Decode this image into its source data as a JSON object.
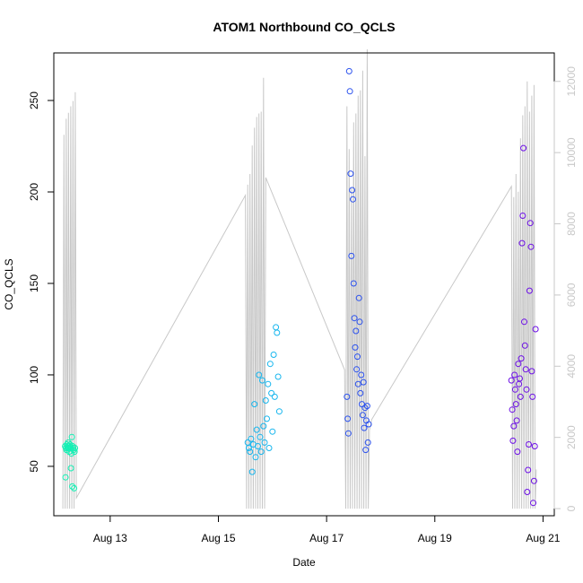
{
  "chart_data": {
    "type": "scatter",
    "title": "ATOM1 Northbound CO_QCLS",
    "xlabel": "Date",
    "ylabel": "CO_QCLS",
    "ylabel_right": "",
    "x_ticks": [
      {
        "label": "Aug 13",
        "value": "2018-08-13"
      },
      {
        "label": "Aug 15",
        "value": "2018-08-15"
      },
      {
        "label": "Aug 17",
        "value": "2018-08-17"
      },
      {
        "label": "Aug 19",
        "value": "2018-08-19"
      },
      {
        "label": "Aug 21",
        "value": "2018-08-21"
      }
    ],
    "y_ticks": [
      50,
      100,
      150,
      200,
      250
    ],
    "y_right_ticks": [
      0,
      2000,
      4000,
      6000,
      8000,
      10000,
      12000
    ],
    "xlim": [
      "2018-08-11T23:00",
      "2018-08-21T05:00"
    ],
    "ylim": [
      23,
      276
    ],
    "y_right_lim": [
      -200,
      12800
    ],
    "grid": false,
    "legend": "none",
    "point_style": "open-circle",
    "color_scale": [
      "#00f5b4",
      "#0aa8ee",
      "#1f2ff0",
      "#6a12e6"
    ],
    "series": [
      {
        "color": "#13f0b4",
        "points": [
          [
            "2018-08-12T04:00",
            61
          ],
          [
            "2018-08-12T04:12",
            44
          ],
          [
            "2018-08-12T04:24",
            60
          ],
          [
            "2018-08-12T04:36",
            59
          ],
          [
            "2018-08-12T04:48",
            62
          ],
          [
            "2018-08-12T05:00",
            61
          ],
          [
            "2018-08-12T05:12",
            60
          ],
          [
            "2018-08-12T05:24",
            63
          ],
          [
            "2018-08-12T05:36",
            60
          ],
          [
            "2018-08-12T05:48",
            58
          ],
          [
            "2018-08-12T06:00",
            61
          ],
          [
            "2018-08-12T06:12",
            62
          ],
          [
            "2018-08-12T06:24",
            60
          ],
          [
            "2018-08-12T06:36",
            49
          ],
          [
            "2018-08-12T06:48",
            57
          ],
          [
            "2018-08-12T07:00",
            66
          ],
          [
            "2018-08-12T07:12",
            39
          ],
          [
            "2018-08-12T07:24",
            61
          ],
          [
            "2018-08-12T07:36",
            60
          ],
          [
            "2018-08-12T07:48",
            59
          ],
          [
            "2018-08-12T08:00",
            38
          ],
          [
            "2018-08-12T08:12",
            58
          ],
          [
            "2018-08-12T08:24",
            60
          ]
        ]
      },
      {
        "color": "#17b6ee",
        "points": [
          [
            "2018-08-15T13:00",
            63
          ],
          [
            "2018-08-15T13:30",
            60
          ],
          [
            "2018-08-15T14:00",
            58
          ],
          [
            "2018-08-15T14:30",
            65
          ],
          [
            "2018-08-15T15:00",
            47
          ],
          [
            "2018-08-15T15:30",
            62
          ],
          [
            "2018-08-15T16:00",
            84
          ],
          [
            "2018-08-15T16:30",
            55
          ],
          [
            "2018-08-15T17:00",
            70
          ],
          [
            "2018-08-15T17:30",
            61
          ],
          [
            "2018-08-15T18:00",
            100
          ],
          [
            "2018-08-15T18:30",
            66
          ],
          [
            "2018-08-15T19:00",
            58
          ],
          [
            "2018-08-15T19:30",
            97
          ],
          [
            "2018-08-15T20:00",
            72
          ],
          [
            "2018-08-15T20:30",
            63
          ],
          [
            "2018-08-15T21:00",
            86
          ],
          [
            "2018-08-15T21:30",
            76
          ],
          [
            "2018-08-15T22:00",
            95
          ],
          [
            "2018-08-15T22:30",
            60
          ],
          [
            "2018-08-15T23:00",
            106
          ],
          [
            "2018-08-15T23:30",
            90
          ],
          [
            "2018-08-16T00:00",
            69
          ],
          [
            "2018-08-16T00:30",
            111
          ],
          [
            "2018-08-16T01:00",
            88
          ],
          [
            "2018-08-16T01:30",
            126
          ],
          [
            "2018-08-16T02:00",
            123
          ],
          [
            "2018-08-16T02:30",
            99
          ],
          [
            "2018-08-16T03:00",
            80
          ]
        ]
      },
      {
        "color": "#2c52ee",
        "points": [
          [
            "2018-08-17T09:00",
            88
          ],
          [
            "2018-08-17T09:20",
            76
          ],
          [
            "2018-08-17T09:40",
            68
          ],
          [
            "2018-08-17T10:00",
            266
          ],
          [
            "2018-08-17T10:20",
            255
          ],
          [
            "2018-08-17T10:40",
            210
          ],
          [
            "2018-08-17T11:00",
            165
          ],
          [
            "2018-08-17T11:20",
            201
          ],
          [
            "2018-08-17T11:40",
            196
          ],
          [
            "2018-08-17T12:00",
            150
          ],
          [
            "2018-08-17T12:20",
            131
          ],
          [
            "2018-08-17T12:40",
            115
          ],
          [
            "2018-08-17T13:00",
            124
          ],
          [
            "2018-08-17T13:20",
            103
          ],
          [
            "2018-08-17T13:40",
            110
          ],
          [
            "2018-08-17T14:00",
            95
          ],
          [
            "2018-08-17T14:20",
            142
          ],
          [
            "2018-08-17T14:40",
            129
          ],
          [
            "2018-08-17T15:00",
            90
          ],
          [
            "2018-08-17T15:20",
            100
          ],
          [
            "2018-08-17T15:40",
            84
          ],
          [
            "2018-08-17T16:00",
            78
          ],
          [
            "2018-08-17T16:20",
            96
          ],
          [
            "2018-08-17T16:40",
            71
          ],
          [
            "2018-08-17T17:00",
            82
          ],
          [
            "2018-08-17T17:20",
            59
          ],
          [
            "2018-08-17T17:40",
            75
          ],
          [
            "2018-08-17T18:00",
            83
          ],
          [
            "2018-08-17T18:20",
            63
          ],
          [
            "2018-08-17T18:40",
            73
          ]
        ]
      },
      {
        "color": "#6d10e6",
        "points": [
          [
            "2018-08-20T10:00",
            97
          ],
          [
            "2018-08-20T10:20",
            81
          ],
          [
            "2018-08-20T10:40",
            64
          ],
          [
            "2018-08-20T11:00",
            72
          ],
          [
            "2018-08-20T11:20",
            100
          ],
          [
            "2018-08-20T11:40",
            92
          ],
          [
            "2018-08-20T12:00",
            84
          ],
          [
            "2018-08-20T12:20",
            75
          ],
          [
            "2018-08-20T12:40",
            58
          ],
          [
            "2018-08-20T13:00",
            106
          ],
          [
            "2018-08-20T13:20",
            95
          ],
          [
            "2018-08-20T13:40",
            98
          ],
          [
            "2018-08-20T14:00",
            88
          ],
          [
            "2018-08-20T14:20",
            109
          ],
          [
            "2018-08-20T14:40",
            172
          ],
          [
            "2018-08-20T15:00",
            187
          ],
          [
            "2018-08-20T15:20",
            224
          ],
          [
            "2018-08-20T15:40",
            129
          ],
          [
            "2018-08-20T16:00",
            116
          ],
          [
            "2018-08-20T16:20",
            103
          ],
          [
            "2018-08-20T16:40",
            92
          ],
          [
            "2018-08-20T17:00",
            36
          ],
          [
            "2018-08-20T17:20",
            48
          ],
          [
            "2018-08-20T17:40",
            62
          ],
          [
            "2018-08-20T18:00",
            146
          ],
          [
            "2018-08-20T18:20",
            183
          ],
          [
            "2018-08-20T18:40",
            170
          ],
          [
            "2018-08-20T19:00",
            102
          ],
          [
            "2018-08-20T19:20",
            88
          ],
          [
            "2018-08-20T19:40",
            30
          ],
          [
            "2018-08-20T20:00",
            42
          ],
          [
            "2018-08-20T20:20",
            61
          ],
          [
            "2018-08-20T20:40",
            125
          ]
        ]
      }
    ],
    "right_axis_line": {
      "color": "#c8c8c8",
      "points": [
        [
          "2018-08-12T03:00",
          0
        ],
        [
          "2018-08-12T03:30",
          10500
        ],
        [
          "2018-08-12T04:00",
          0
        ],
        [
          "2018-08-12T04:30",
          10950
        ],
        [
          "2018-08-12T05:00",
          0
        ],
        [
          "2018-08-12T05:30",
          11120
        ],
        [
          "2018-08-12T06:00",
          0
        ],
        [
          "2018-08-12T06:30",
          11300
        ],
        [
          "2018-08-12T07:00",
          0
        ],
        [
          "2018-08-12T07:30",
          11450
        ],
        [
          "2018-08-12T08:00",
          0
        ],
        [
          "2018-08-12T08:30",
          11700
        ],
        [
          "2018-08-12T09:00",
          300
        ],
        [
          "2018-08-15T12:00",
          8800
        ],
        [
          "2018-08-15T12:30",
          0
        ],
        [
          "2018-08-15T13:00",
          9100
        ],
        [
          "2018-08-15T13:30",
          0
        ],
        [
          "2018-08-15T14:00",
          9400
        ],
        [
          "2018-08-15T14:30",
          0
        ],
        [
          "2018-08-15T15:00",
          10200
        ],
        [
          "2018-08-15T15:30",
          0
        ],
        [
          "2018-08-15T16:00",
          10700
        ],
        [
          "2018-08-15T16:30",
          0
        ],
        [
          "2018-08-15T17:00",
          11000
        ],
        [
          "2018-08-15T17:30",
          0
        ],
        [
          "2018-08-15T18:00",
          11100
        ],
        [
          "2018-08-15T18:30",
          0
        ],
        [
          "2018-08-15T19:00",
          11150
        ],
        [
          "2018-08-15T19:30",
          0
        ],
        [
          "2018-08-15T20:00",
          12100
        ],
        [
          "2018-08-15T20:30",
          0
        ],
        [
          "2018-08-15T21:00",
          9300
        ],
        [
          "2018-08-17T08:00",
          3900
        ],
        [
          "2018-08-17T08:30",
          0
        ],
        [
          "2018-08-17T09:00",
          11300
        ],
        [
          "2018-08-17T09:30",
          0
        ],
        [
          "2018-08-17T10:00",
          10100
        ],
        [
          "2018-08-17T10:30",
          0
        ],
        [
          "2018-08-17T11:00",
          9000
        ],
        [
          "2018-08-17T11:30",
          0
        ],
        [
          "2018-08-17T12:00",
          10850
        ],
        [
          "2018-08-17T12:30",
          0
        ],
        [
          "2018-08-17T13:00",
          11100
        ],
        [
          "2018-08-17T13:30",
          0
        ],
        [
          "2018-08-17T14:00",
          11600
        ],
        [
          "2018-08-17T14:30",
          0
        ],
        [
          "2018-08-17T15:00",
          11750
        ],
        [
          "2018-08-17T15:30",
          0
        ],
        [
          "2018-08-17T16:00",
          12300
        ],
        [
          "2018-08-17T16:30",
          0
        ],
        [
          "2018-08-17T17:00",
          9900
        ],
        [
          "2018-08-17T17:30",
          0
        ],
        [
          "2018-08-17T18:00",
          12900
        ],
        [
          "2018-08-17T18:30",
          0
        ],
        [
          "2018-08-17T19:00",
          2200
        ],
        [
          "2018-08-17T20:00",
          2500
        ],
        [
          "2018-08-20T10:00",
          9050
        ],
        [
          "2018-08-20T10:30",
          0
        ],
        [
          "2018-08-20T11:00",
          8750
        ],
        [
          "2018-08-20T11:30",
          0
        ],
        [
          "2018-08-20T12:00",
          9400
        ],
        [
          "2018-08-20T12:30",
          0
        ],
        [
          "2018-08-20T13:00",
          8900
        ],
        [
          "2018-08-20T13:30",
          0
        ],
        [
          "2018-08-20T14:00",
          10400
        ],
        [
          "2018-08-20T14:30",
          0
        ],
        [
          "2018-08-20T15:00",
          11050
        ],
        [
          "2018-08-20T15:30",
          0
        ],
        [
          "2018-08-20T16:00",
          11300
        ],
        [
          "2018-08-20T16:30",
          0
        ],
        [
          "2018-08-20T17:00",
          12000
        ],
        [
          "2018-08-20T17:30",
          0
        ],
        [
          "2018-08-20T18:00",
          11150
        ],
        [
          "2018-08-20T18:30",
          0
        ],
        [
          "2018-08-20T19:00",
          11600
        ],
        [
          "2018-08-20T19:30",
          0
        ],
        [
          "2018-08-20T20:00",
          11900
        ],
        [
          "2018-08-20T20:30",
          0
        ],
        [
          "2018-08-20T21:00",
          1100
        ]
      ]
    }
  }
}
